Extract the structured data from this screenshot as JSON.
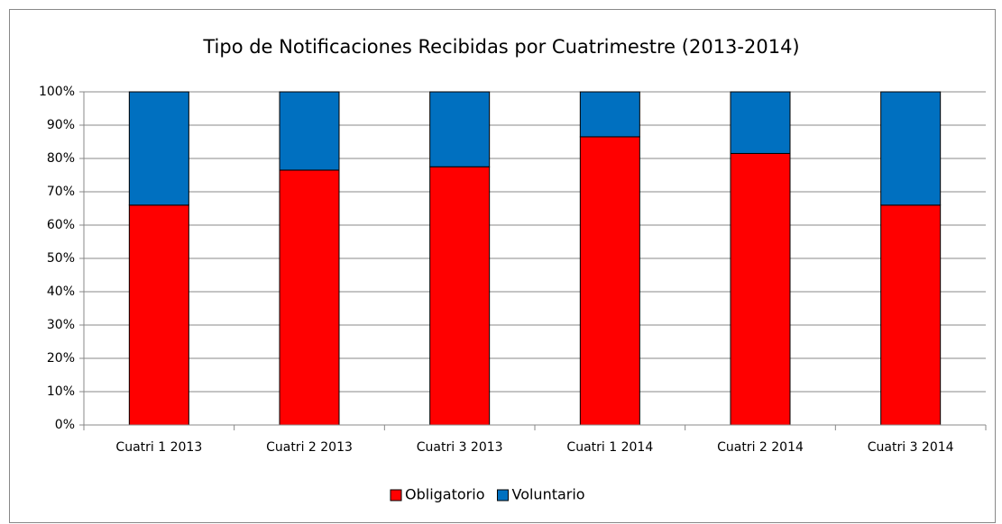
{
  "chart_data": {
    "type": "stacked_bar",
    "title": "Tipo de Notificaciones Recibidas por Cuatrimestre (2013-2014)",
    "categories": [
      "Cuatri 1 2013",
      "Cuatri 2 2013",
      "Cuatri 3 2013",
      "Cuatri 1 2014",
      "Cuatri 2 2014",
      "Cuatri 3 2014"
    ],
    "series": [
      {
        "name": "Obligatorio",
        "color": "#ff0000",
        "values": [
          66,
          76.5,
          77.5,
          86.5,
          81.5,
          66
        ]
      },
      {
        "name": "Voluntario",
        "color": "#0070c0",
        "values": [
          34,
          23.5,
          22.5,
          13.5,
          18.5,
          34
        ]
      }
    ],
    "ylim": [
      0,
      100
    ],
    "yticks": [
      {
        "value": 0,
        "label": "0%"
      },
      {
        "value": 10,
        "label": "10%"
      },
      {
        "value": 20,
        "label": "20%"
      },
      {
        "value": 30,
        "label": "30%"
      },
      {
        "value": 40,
        "label": "40%"
      },
      {
        "value": 50,
        "label": "50%"
      },
      {
        "value": 60,
        "label": "60%"
      },
      {
        "value": 70,
        "label": "70%"
      },
      {
        "value": 80,
        "label": "80%"
      },
      {
        "value": 90,
        "label": "90%"
      },
      {
        "value": 100,
        "label": "100%"
      }
    ],
    "grid": true,
    "legend": "bottom"
  }
}
